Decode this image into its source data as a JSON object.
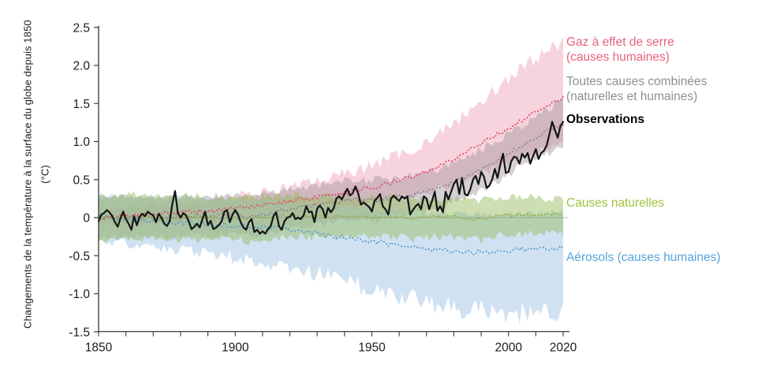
{
  "legend": {
    "items": [
      {
        "id": "ghg",
        "line1": "Gaz à effet de serre",
        "line2": "(causes humaines)",
        "color": "#e8637d"
      },
      {
        "id": "combined",
        "line1": "Toutes causes combinées",
        "line2": "(naturelles et humaines)",
        "color": "#8f8f8f"
      },
      {
        "id": "observations",
        "line1": "Observations",
        "line2": "",
        "color": "#000000"
      },
      {
        "id": "natural",
        "line1": "Causes naturelles",
        "line2": "",
        "color": "#a2c03d"
      },
      {
        "id": "aerosols",
        "line1": "Aérosols (causes humaines)",
        "line2": "",
        "color": "#57a4d9"
      }
    ]
  },
  "chart_data": {
    "type": "area",
    "title": "",
    "ylabel_line1": "Changements de la température à la surface du globe depuis 1850",
    "ylabel_line2": "(°C)",
    "x_range": [
      1850,
      2020
    ],
    "y_range": [
      -1.5,
      2.5
    ],
    "x_ticks_labeled": [
      "1850",
      "1900",
      "1950",
      "2000",
      "2020"
    ],
    "x_minor_step": 10,
    "y_ticks": [
      "2.5",
      "2.0",
      "1.5",
      "1.0",
      "0.5",
      "0",
      "-0.5",
      "-1.0",
      "-1.5"
    ],
    "grid": "off",
    "legend_position": "right",
    "band_years_step": 5,
    "series": [
      {
        "id": "ghg",
        "name": "Gaz à effet de serre (causes humaines)",
        "band_color": "#f0aabe",
        "band_opacity": 0.52,
        "line_color": "#e04a6e",
        "line_style": "dotted",
        "mid": [
          0.0,
          0.01,
          0.02,
          0.03,
          0.04,
          0.05,
          0.07,
          0.08,
          0.09,
          0.11,
          0.12,
          0.14,
          0.16,
          0.18,
          0.21,
          0.24,
          0.27,
          0.3,
          0.33,
          0.36,
          0.4,
          0.44,
          0.49,
          0.54,
          0.6,
          0.68,
          0.77,
          0.87,
          0.98,
          1.08,
          1.18,
          1.28,
          1.38,
          1.48,
          1.57
        ],
        "upper": [
          0.1,
          0.11,
          0.13,
          0.14,
          0.16,
          0.17,
          0.19,
          0.21,
          0.23,
          0.25,
          0.28,
          0.3,
          0.33,
          0.36,
          0.4,
          0.44,
          0.48,
          0.53,
          0.58,
          0.63,
          0.69,
          0.76,
          0.83,
          0.91,
          1.0,
          1.11,
          1.24,
          1.38,
          1.53,
          1.68,
          1.83,
          1.97,
          2.1,
          2.22,
          2.33
        ],
        "lower": [
          -0.1,
          -0.09,
          -0.09,
          -0.08,
          -0.08,
          -0.07,
          -0.06,
          -0.05,
          -0.05,
          -0.04,
          -0.03,
          -0.02,
          -0.01,
          0.01,
          0.03,
          0.05,
          0.07,
          0.09,
          0.12,
          0.15,
          0.18,
          0.21,
          0.25,
          0.29,
          0.33,
          0.38,
          0.44,
          0.5,
          0.57,
          0.64,
          0.71,
          0.79,
          0.87,
          0.94,
          1.01
        ]
      },
      {
        "id": "combined",
        "name": "Toutes causes combinées (naturelles et humaines)",
        "band_color": "#9b8f96",
        "band_opacity": 0.42,
        "line_color": "#8d8390",
        "line_style": "dotted",
        "mid": [
          0.0,
          0.01,
          0.0,
          0.01,
          0.02,
          0.0,
          0.01,
          0.02,
          0.02,
          0.03,
          0.04,
          0.02,
          0.05,
          0.08,
          0.11,
          0.14,
          0.17,
          0.2,
          0.23,
          0.24,
          0.22,
          0.25,
          0.27,
          0.29,
          0.33,
          0.39,
          0.46,
          0.54,
          0.63,
          0.73,
          0.84,
          0.95,
          1.05,
          1.15,
          1.24
        ],
        "upper": [
          0.26,
          0.27,
          0.26,
          0.27,
          0.27,
          0.26,
          0.27,
          0.28,
          0.28,
          0.29,
          0.3,
          0.28,
          0.31,
          0.34,
          0.37,
          0.4,
          0.43,
          0.46,
          0.49,
          0.5,
          0.48,
          0.51,
          0.53,
          0.55,
          0.59,
          0.65,
          0.72,
          0.8,
          0.9,
          1.0,
          1.11,
          1.22,
          1.33,
          1.44,
          1.54
        ],
        "lower": [
          -0.26,
          -0.25,
          -0.26,
          -0.25,
          -0.23,
          -0.26,
          -0.25,
          -0.24,
          -0.24,
          -0.23,
          -0.22,
          -0.24,
          -0.21,
          -0.18,
          -0.15,
          -0.12,
          -0.09,
          -0.06,
          -0.03,
          -0.02,
          -0.04,
          -0.01,
          0.01,
          0.03,
          0.07,
          0.13,
          0.2,
          0.28,
          0.36,
          0.46,
          0.57,
          0.68,
          0.77,
          0.86,
          0.94
        ]
      },
      {
        "id": "aerosols",
        "name": "Aérosols (causes humaines)",
        "band_color": "#a9cbe8",
        "band_opacity": 0.55,
        "line_color": "#5b9bce",
        "line_style": "dotted",
        "mid": [
          0.0,
          -0.01,
          -0.02,
          -0.03,
          -0.04,
          -0.05,
          -0.06,
          -0.07,
          -0.08,
          -0.09,
          -0.1,
          -0.11,
          -0.13,
          -0.14,
          -0.16,
          -0.18,
          -0.2,
          -0.23,
          -0.26,
          -0.29,
          -0.31,
          -0.34,
          -0.36,
          -0.38,
          -0.4,
          -0.42,
          -0.44,
          -0.45,
          -0.45,
          -0.44,
          -0.43,
          -0.42,
          -0.41,
          -0.4,
          -0.4
        ],
        "upper": [
          0.3,
          0.29,
          0.28,
          0.28,
          0.27,
          0.26,
          0.25,
          0.25,
          0.24,
          0.23,
          0.23,
          0.22,
          0.21,
          0.2,
          0.19,
          0.18,
          0.17,
          0.15,
          0.14,
          0.13,
          0.12,
          0.1,
          0.09,
          0.08,
          0.07,
          0.06,
          0.05,
          0.05,
          0.04,
          0.05,
          0.05,
          0.06,
          0.06,
          0.07,
          0.07
        ],
        "lower": [
          -0.3,
          -0.32,
          -0.34,
          -0.36,
          -0.38,
          -0.4,
          -0.42,
          -0.44,
          -0.47,
          -0.49,
          -0.52,
          -0.55,
          -0.58,
          -0.62,
          -0.66,
          -0.7,
          -0.74,
          -0.79,
          -0.84,
          -0.89,
          -0.93,
          -0.98,
          -1.02,
          -1.06,
          -1.1,
          -1.14,
          -1.17,
          -1.2,
          -1.22,
          -1.24,
          -1.25,
          -1.26,
          -1.27,
          -1.28,
          -1.28
        ]
      },
      {
        "id": "natural",
        "name": "Causes naturelles",
        "band_color": "#96b95f",
        "band_opacity": 0.48,
        "line_color": "#92ad3c",
        "line_style": "dotted",
        "mid": [
          0.0,
          0.01,
          0.0,
          0.01,
          0.0,
          -0.02,
          0.0,
          0.01,
          0.01,
          -0.01,
          0.0,
          -0.03,
          0.01,
          0.01,
          0.02,
          0.02,
          0.02,
          0.01,
          0.02,
          0.01,
          0.01,
          0.02,
          0.01,
          -0.03,
          0.02,
          0.01,
          0.01,
          -0.02,
          -0.03,
          0.02,
          0.03,
          0.03,
          0.03,
          0.04,
          0.04
        ],
        "upper": [
          0.28,
          0.3,
          0.29,
          0.3,
          0.28,
          0.26,
          0.28,
          0.29,
          0.28,
          0.27,
          0.28,
          0.25,
          0.28,
          0.29,
          0.3,
          0.3,
          0.29,
          0.28,
          0.29,
          0.28,
          0.27,
          0.28,
          0.27,
          0.24,
          0.27,
          0.26,
          0.26,
          0.24,
          0.23,
          0.27,
          0.28,
          0.27,
          0.26,
          0.25,
          0.24
        ],
        "lower": [
          -0.28,
          -0.27,
          -0.29,
          -0.27,
          -0.28,
          -0.32,
          -0.28,
          -0.28,
          -0.27,
          -0.3,
          -0.28,
          -0.33,
          -0.27,
          -0.26,
          -0.25,
          -0.25,
          -0.26,
          -0.26,
          -0.25,
          -0.26,
          -0.25,
          -0.24,
          -0.25,
          -0.3,
          -0.24,
          -0.25,
          -0.25,
          -0.28,
          -0.3,
          -0.24,
          -0.22,
          -0.22,
          -0.21,
          -0.2,
          -0.19
        ]
      }
    ],
    "observations": {
      "name": "Observations",
      "line_color": "#141414",
      "start_year": 1850,
      "values": [
        -0.05,
        0.04,
        0.06,
        0.1,
        0.07,
        0.02,
        -0.06,
        -0.12,
        -0.01,
        0.08,
        -0.02,
        -0.08,
        -0.16,
        0.02,
        -0.1,
        0.01,
        0.05,
        0.02,
        0.08,
        0.05,
        0.03,
        -0.06,
        0.05,
        0.0,
        -0.08,
        -0.11,
        -0.05,
        0.18,
        0.35,
        0.06,
        0.0,
        0.06,
        0.03,
        -0.05,
        -0.15,
        -0.12,
        -0.08,
        -0.13,
        -0.02,
        0.08,
        -0.1,
        -0.04,
        -0.15,
        -0.13,
        -0.1,
        -0.05,
        0.08,
        0.1,
        -0.06,
        0.04,
        0.1,
        0.04,
        -0.06,
        -0.13,
        -0.16,
        -0.06,
        -0.02,
        -0.19,
        -0.16,
        -0.21,
        -0.18,
        -0.21,
        -0.15,
        -0.11,
        0.02,
        0.07,
        -0.11,
        -0.16,
        -0.05,
        0.0,
        0.01,
        0.06,
        -0.02,
        0.0,
        -0.02,
        0.03,
        0.15,
        0.07,
        0.08,
        -0.06,
        0.12,
        0.16,
        0.11,
        0.0,
        0.13,
        0.07,
        0.12,
        0.25,
        0.28,
        0.24,
        0.31,
        0.38,
        0.29,
        0.32,
        0.41,
        0.32,
        0.17,
        0.2,
        0.17,
        0.14,
        0.08,
        0.22,
        0.26,
        0.31,
        0.15,
        0.11,
        0.04,
        0.25,
        0.29,
        0.25,
        0.22,
        0.28,
        0.25,
        0.28,
        0.04,
        0.1,
        0.15,
        0.18,
        0.11,
        0.28,
        0.25,
        0.11,
        0.22,
        0.34,
        0.09,
        0.15,
        0.07,
        0.34,
        0.24,
        0.34,
        0.44,
        0.5,
        0.31,
        0.52,
        0.31,
        0.29,
        0.37,
        0.5,
        0.55,
        0.44,
        0.6,
        0.54,
        0.39,
        0.42,
        0.5,
        0.64,
        0.52,
        0.7,
        0.84,
        0.59,
        0.6,
        0.74,
        0.8,
        0.79,
        0.71,
        0.84,
        0.79,
        0.85,
        0.71,
        0.81,
        0.9,
        0.77,
        0.85,
        0.88,
        0.95,
        1.1,
        1.26,
        1.15,
        1.05,
        1.2,
        1.26
      ]
    }
  }
}
